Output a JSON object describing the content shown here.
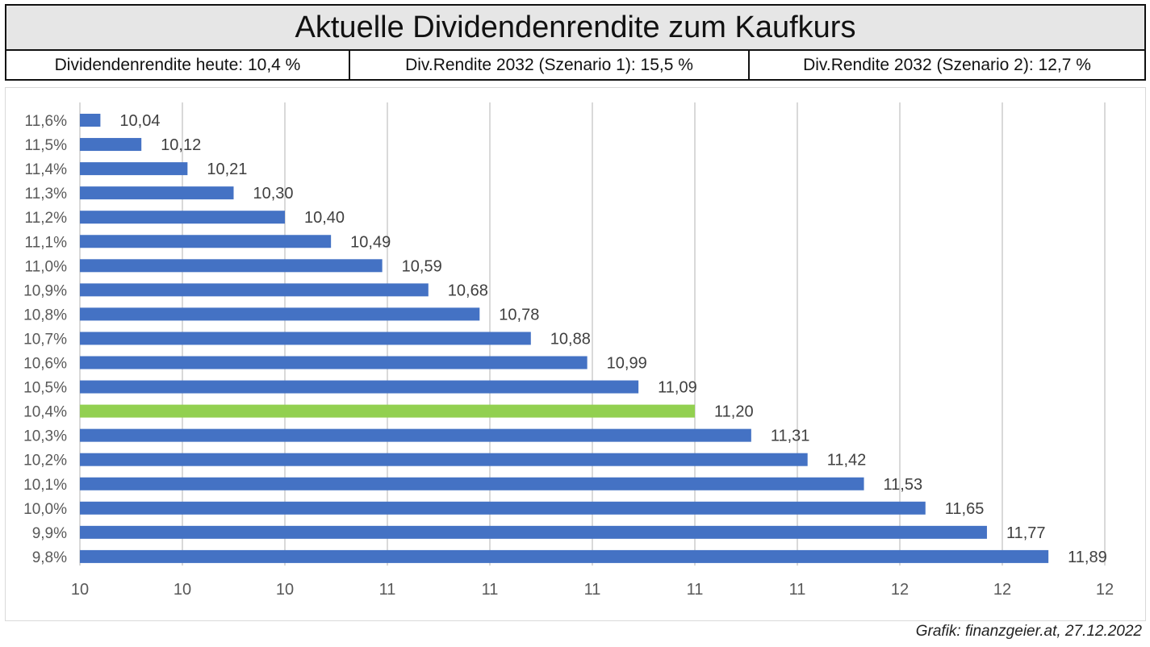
{
  "header": {
    "title": "Aktuelle Dividendenrendite zum Kaufkurs",
    "stats": [
      "Dividendenrendite heute: 10,4 %",
      "Div.Rendite 2032 (Szenario 1): 15,5 %",
      "Div.Rendite 2032 (Szenario 2): 12,7 %"
    ]
  },
  "chart_data": {
    "type": "bar",
    "orientation": "horizontal",
    "title": "",
    "xlabel": "",
    "ylabel": "",
    "categories": [
      "11,6%",
      "11,5%",
      "11,4%",
      "11,3%",
      "11,2%",
      "11,1%",
      "11,0%",
      "10,9%",
      "10,8%",
      "10,7%",
      "10,6%",
      "10,5%",
      "10,4%",
      "10,3%",
      "10,2%",
      "10,1%",
      "10,0%",
      "9,9%",
      "9,8%"
    ],
    "values": [
      10.04,
      10.12,
      10.21,
      10.3,
      10.4,
      10.49,
      10.59,
      10.68,
      10.78,
      10.88,
      10.99,
      11.09,
      11.2,
      11.31,
      11.42,
      11.53,
      11.65,
      11.77,
      11.89
    ],
    "value_labels": [
      "10,04",
      "10,12",
      "10,21",
      "10,30",
      "10,40",
      "10,49",
      "10,59",
      "10,68",
      "10,78",
      "10,88",
      "10,99",
      "11,09",
      "11,20",
      "11,31",
      "11,42",
      "11,53",
      "11,65",
      "11,77",
      "11,89"
    ],
    "highlight_category": "10,4%",
    "xlim": [
      10.0,
      12.0
    ],
    "x_ticks": [
      10.0,
      10.2,
      10.4,
      10.6,
      10.8,
      11.0,
      11.2,
      11.4,
      11.6,
      11.8,
      12.0
    ],
    "x_tick_labels": [
      "10",
      "10",
      "10",
      "11",
      "11",
      "11",
      "11",
      "11",
      "12",
      "12",
      "12"
    ],
    "grid": true,
    "colors": {
      "bar": "#4472c4",
      "highlight": "#92d050",
      "grid": "#d9d9d9",
      "label": "#404040"
    }
  },
  "footer": {
    "credit": "Grafik: finanzgeier.at, 27.12.2022"
  }
}
